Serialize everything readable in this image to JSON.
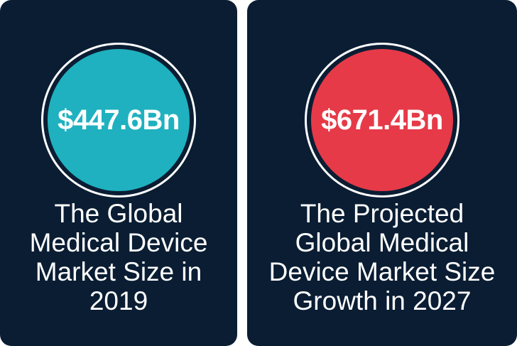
{
  "colors": {
    "card_background": "#0a1d33",
    "teal_disc": "#1fb1bf",
    "red_disc": "#e63a48",
    "ring": "#ffffff",
    "text": "#ffffff"
  },
  "left_card": {
    "value": "$447.6Bn",
    "caption_lines": [
      "The Global",
      "Medical Device",
      "Market Size in",
      "2019"
    ]
  },
  "right_card": {
    "value": "$671.4Bn",
    "caption_lines": [
      "The Projected",
      "Global Medical",
      "Device Market Size",
      "Growth in 2027"
    ]
  }
}
